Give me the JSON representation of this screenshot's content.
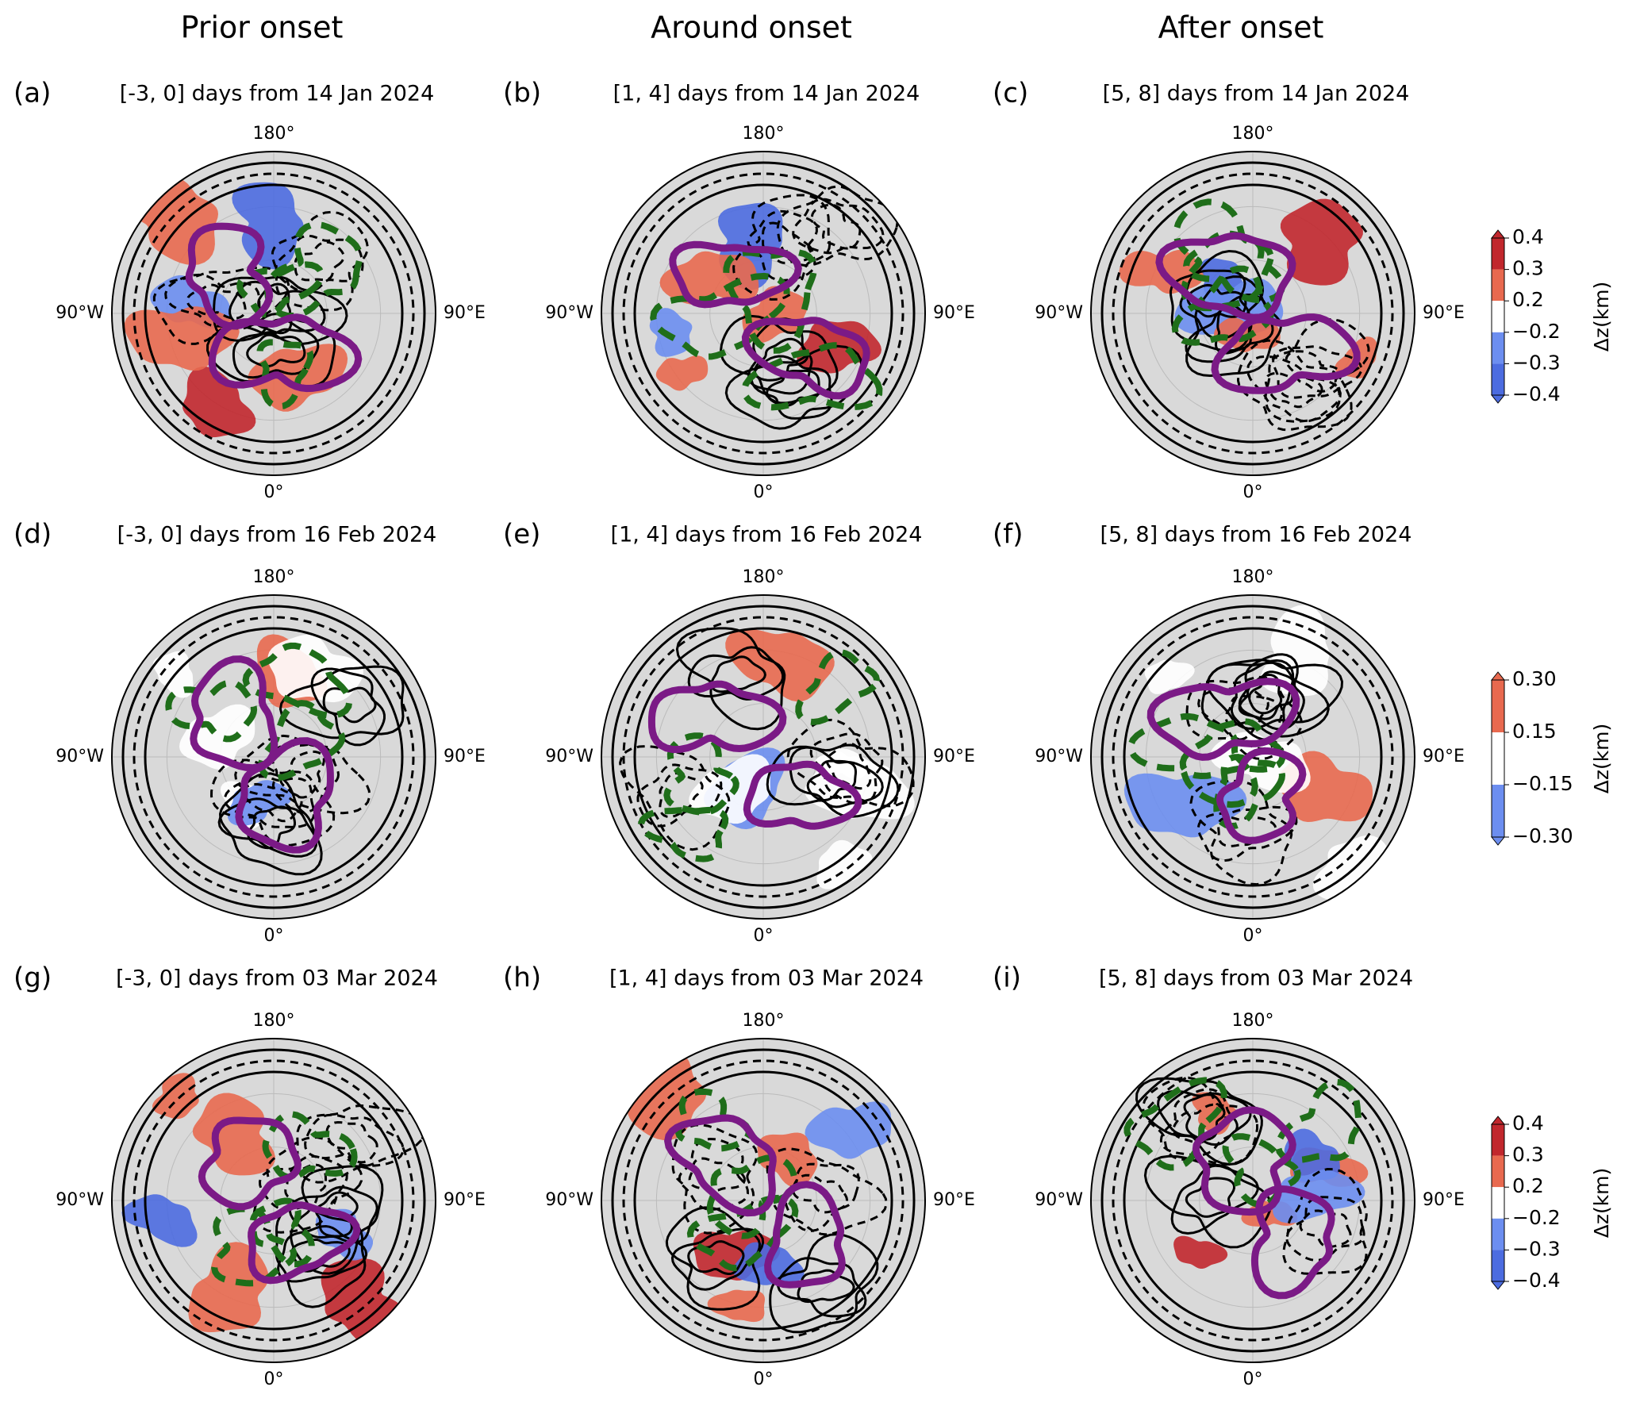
{
  "column_titles": [
    "Prior onset",
    "Around onset",
    "After onset"
  ],
  "panels": [
    {
      "label": "(a)",
      "subtitle": "[-3, 0] days from 14 Jan 2024",
      "lon_labels": {
        "top": "180°",
        "left": "90°W",
        "right": "90°E",
        "bottom": "0°"
      }
    },
    {
      "label": "(b)",
      "subtitle": "[1, 4] days from 14 Jan 2024",
      "lon_labels": {
        "top": "180°",
        "left": "90°W",
        "right": "90°E",
        "bottom": "0°"
      }
    },
    {
      "label": "(c)",
      "subtitle": "[5, 8] days from 14 Jan 2024",
      "lon_labels": {
        "top": "180°",
        "left": "90°W",
        "right": "90°E",
        "bottom": "0°"
      }
    },
    {
      "label": "(d)",
      "subtitle": "[-3, 0] days from 16 Feb 2024",
      "lon_labels": {
        "top": "180°",
        "left": "90°W",
        "right": "90°E",
        "bottom": "0°"
      }
    },
    {
      "label": "(e)",
      "subtitle": "[1, 4] days from 16 Feb 2024",
      "lon_labels": {
        "top": "180°",
        "left": "90°W",
        "right": "90°E",
        "bottom": "0°"
      }
    },
    {
      "label": "(f)",
      "subtitle": "[5, 8] days from 16 Feb 2024",
      "lon_labels": {
        "top": "180°",
        "left": "90°W",
        "right": "90°E",
        "bottom": "0°"
      }
    },
    {
      "label": "(g)",
      "subtitle": "[-3, 0] days from 03 Mar 2024",
      "lon_labels": {
        "top": "180°",
        "left": "90°W",
        "right": "90°E",
        "bottom": "0°"
      }
    },
    {
      "label": "(h)",
      "subtitle": "[1, 4] days from 03 Mar 2024",
      "lon_labels": {
        "top": "180°",
        "left": "90°W",
        "right": "90°E",
        "bottom": "0°"
      }
    },
    {
      "label": "(i)",
      "subtitle": "[5, 8] days from 03 Mar 2024",
      "lon_labels": {
        "top": "180°",
        "left": "90°W",
        "right": "90°E",
        "bottom": "0°"
      }
    }
  ],
  "colorbars": [
    {
      "label": "Δz(km)",
      "ticks": [
        "0.4",
        "0.3",
        "0.2",
        "−0.2",
        "−0.3",
        "−0.4"
      ],
      "colors": [
        "#c1272d",
        "#e8694f",
        "#ffffff",
        "#6c8ef0",
        "#4c6ce0"
      ]
    },
    {
      "label": "Δz(km)",
      "ticks": [
        "0.30",
        "0.15",
        "−0.15",
        "−0.30"
      ],
      "colors": [
        "#e8694f",
        "#ffffff",
        "#6c8ef0"
      ]
    },
    {
      "label": "Δz(km)",
      "ticks": [
        "0.4",
        "0.3",
        "0.2",
        "−0.2",
        "−0.3",
        "−0.4"
      ],
      "colors": [
        "#c1272d",
        "#e8694f",
        "#ffffff",
        "#6c8ef0",
        "#4c6ce0"
      ]
    }
  ]
}
